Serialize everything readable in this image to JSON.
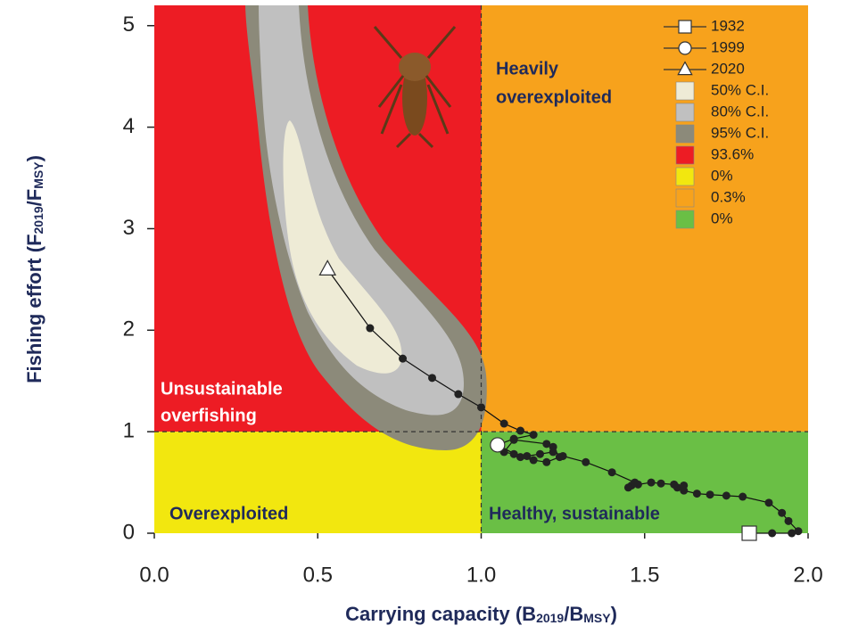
{
  "chart_data": {
    "type": "kobe",
    "xlabel": [
      "Carrying capacity (B",
      "2019",
      "/B",
      "MSY",
      ")"
    ],
    "ylabel": [
      "Fishing effort (F",
      "2019",
      "/F",
      "MSY",
      ")"
    ],
    "xlim": [
      0,
      2.0
    ],
    "ylim": [
      0,
      5.2
    ],
    "xticks": [
      {
        "value": 0,
        "label": "0.0"
      },
      0.5,
      {
        "value": 1,
        "label": "1.0"
      },
      1.5,
      {
        "value": 2,
        "label": "2.0"
      }
    ],
    "yticks": [
      0,
      1,
      2,
      3,
      4,
      5
    ],
    "reference_x": 1,
    "reference_y": 1,
    "quadrants": [
      {
        "name": "93.6%",
        "color": "#ed1c24"
      },
      {
        "name": "0%",
        "color": "#f2e70f"
      },
      {
        "name": "0.3%",
        "color": "#f7a21c"
      },
      {
        "name": "0%",
        "color": "#6abf45"
      }
    ],
    "confidence": [
      {
        "name": "50% C.I.",
        "color": "#eeebd6"
      },
      {
        "name": "80% C.I.",
        "color": "#c0c0c0"
      },
      {
        "name": "95% C.I.",
        "color": "#8c8a7a"
      }
    ],
    "years": [
      {
        "name": "1932",
        "marker": "square",
        "x": 1.82,
        "y": 0
      },
      {
        "name": "1999",
        "marker": "circle",
        "x": 1.05,
        "y": 0.87
      },
      {
        "name": "2020",
        "marker": "triangle",
        "x": 0.53,
        "y": 2.6
      }
    ],
    "trajectory": {
      "x": [
        1.82,
        1.89,
        1.95,
        1.97,
        1.94,
        1.92,
        1.88,
        1.8,
        1.75,
        1.7,
        1.66,
        1.62,
        1.6,
        1.62,
        1.59,
        1.55,
        1.52,
        1.48,
        1.46,
        1.45,
        1.47,
        1.4,
        1.32,
        1.25,
        1.22,
        1.18,
        1.14,
        1.1,
        1.07,
        1.1,
        1.2,
        1.22,
        1.24,
        1.2,
        1.16,
        1.12,
        1.05,
        1.1,
        1.16,
        1.12,
        1.07,
        1.0,
        0.93,
        0.85,
        0.76,
        0.66,
        0.53
      ],
      "y": [
        0,
        0,
        0,
        0.02,
        0.12,
        0.2,
        0.3,
        0.36,
        0.37,
        0.38,
        0.39,
        0.42,
        0.45,
        0.47,
        0.48,
        0.49,
        0.5,
        0.48,
        0.47,
        0.45,
        0.5,
        0.6,
        0.7,
        0.76,
        0.8,
        0.78,
        0.76,
        0.78,
        0.8,
        0.92,
        0.88,
        0.85,
        0.75,
        0.7,
        0.72,
        0.75,
        0.87,
        0.93,
        0.97,
        1.01,
        1.08,
        1.24,
        1.37,
        1.53,
        1.72,
        2.02,
        2.6
      ]
    },
    "annotations": [
      "Heavily",
      "overexploited",
      "Unsustainable",
      "overfishing",
      "Overexploited",
      "Healthy, sustainable"
    ]
  }
}
